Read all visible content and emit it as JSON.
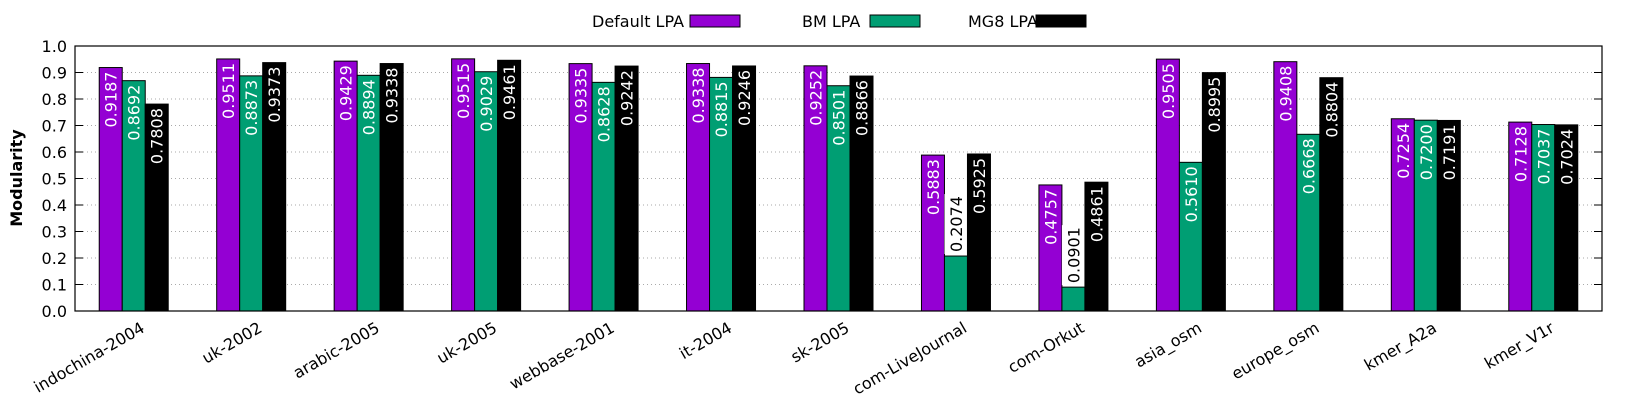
{
  "chart_data": {
    "type": "bar",
    "y_label": "Modularity",
    "categories": [
      "indochina-2004",
      "uk-2002",
      "arabic-2005",
      "uk-2005",
      "webbase-2001",
      "it-2004",
      "sk-2005",
      "com-LiveJournal",
      "com-Orkut",
      "asia_osm",
      "europe_osm",
      "kmer_A2a",
      "kmer_V1r"
    ],
    "series": [
      {
        "name": "Default LPA",
        "color": "#9400d3",
        "values": [
          0.9187,
          0.9511,
          0.9429,
          0.9515,
          0.9335,
          0.9338,
          0.9252,
          0.5883,
          0.4757,
          0.9505,
          0.9408,
          0.7254,
          0.7128
        ],
        "value_labels": [
          "0.9187",
          "0.9511",
          "0.9429",
          "0.9515",
          "0.9335",
          "0.9338",
          "0.9252",
          "0.5883",
          "0.4757",
          "0.9505",
          "0.9408",
          "0.7254",
          "0.7128"
        ]
      },
      {
        "name": "BM LPA",
        "color": "#009e73",
        "values": [
          0.8692,
          0.8873,
          0.8894,
          0.9029,
          0.8628,
          0.8815,
          0.8501,
          0.2074,
          0.0901,
          0.561,
          0.6668,
          0.72,
          0.7037
        ],
        "value_labels": [
          "0.8692",
          "0.8873",
          "0.8894",
          "0.9029",
          "0.8628",
          "0.8815",
          "0.8501",
          "0.2074",
          "0.0901",
          "0.5610",
          "0.6668",
          "0.7200",
          "0.7037"
        ]
      },
      {
        "name": "MG8 LPA",
        "color": "#000000",
        "values": [
          0.7808,
          0.9373,
          0.9338,
          0.9461,
          0.9242,
          0.9246,
          0.8866,
          0.5925,
          0.4861,
          0.8995,
          0.8804,
          0.7191,
          0.7024
        ],
        "value_labels": [
          "0.7808",
          "0.9373",
          "0.9338",
          "0.9461",
          "0.9242",
          "0.9246",
          "0.8866",
          "0.5925",
          "0.4861",
          "0.8995",
          "0.8804",
          "0.7191",
          "0.7024"
        ]
      }
    ],
    "ylim": [
      0,
      1
    ],
    "yticks": [
      {
        "value": 0,
        "label": "0.0"
      },
      0.1,
      0.2,
      0.3,
      0.4,
      0.5,
      0.6,
      0.7,
      0.8,
      0.9,
      {
        "value": 1,
        "label": "1.0"
      }
    ],
    "grid": true,
    "legend": "top"
  }
}
